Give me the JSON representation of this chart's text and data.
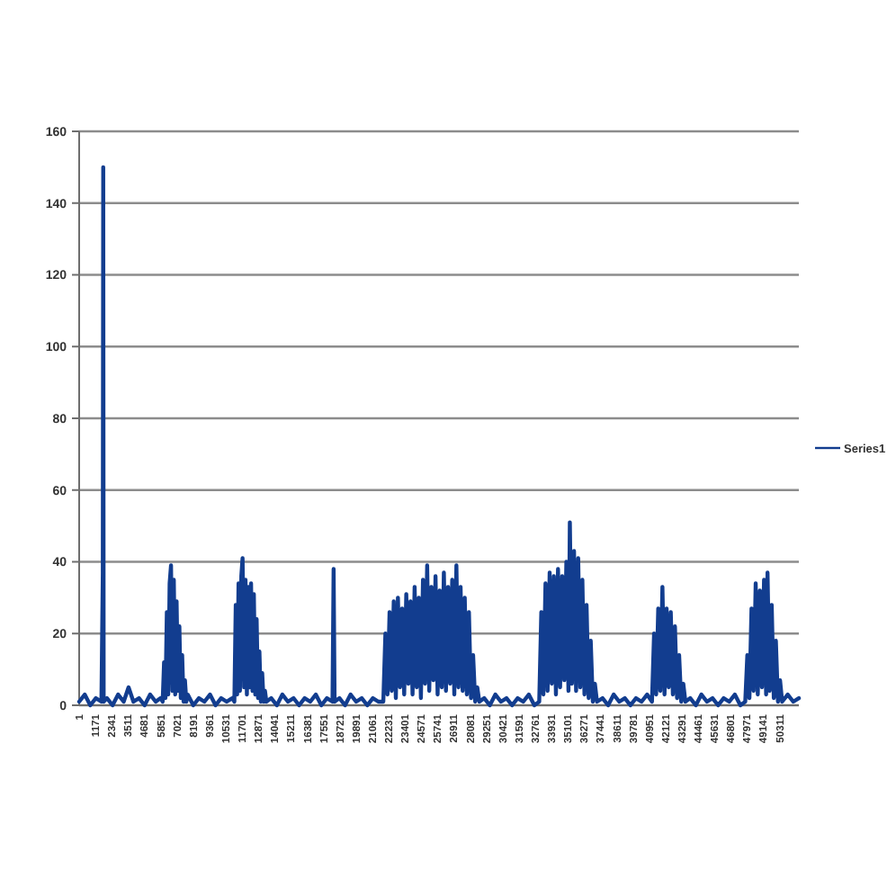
{
  "chart_data": {
    "type": "line",
    "x": [
      1,
      400,
      800,
      1200,
      1600,
      1700,
      1730,
      1760,
      2000,
      2400,
      2800,
      3200,
      3550,
      3900,
      4300,
      4700,
      5100,
      5500,
      5850,
      6000,
      6100,
      6200,
      6300,
      6400,
      6500,
      6600,
      6700,
      6800,
      6900,
      7000,
      7100,
      7200,
      7300,
      7400,
      7500,
      7600,
      7700,
      7800,
      8200,
      8600,
      9000,
      9400,
      9800,
      10200,
      10600,
      11000,
      11150,
      11250,
      11350,
      11450,
      11550,
      11650,
      11740,
      11850,
      11950,
      12050,
      12150,
      12250,
      12350,
      12450,
      12550,
      12650,
      12750,
      12850,
      12950,
      13050,
      13150,
      13250,
      13350,
      13450,
      13800,
      14200,
      14600,
      15000,
      15400,
      15800,
      16200,
      16600,
      17000,
      17400,
      17800,
      18200,
      18280,
      18350,
      18700,
      19100,
      19500,
      19900,
      20300,
      20700,
      21100,
      21500,
      21850,
      22000,
      22150,
      22300,
      22450,
      22600,
      22750,
      22900,
      23050,
      23200,
      23350,
      23500,
      23650,
      23800,
      23950,
      24100,
      24250,
      24400,
      24550,
      24700,
      24850,
      25000,
      25150,
      25300,
      25450,
      25600,
      25750,
      25900,
      26050,
      26200,
      26350,
      26500,
      26650,
      26800,
      26950,
      27100,
      27250,
      27400,
      27550,
      27700,
      27850,
      28000,
      28150,
      28300,
      28450,
      28600,
      28750,
      29100,
      29500,
      29900,
      30300,
      30700,
      31100,
      31500,
      31900,
      32300,
      32700,
      33050,
      33200,
      33350,
      33500,
      33650,
      33800,
      33950,
      34100,
      34250,
      34400,
      34550,
      34700,
      34850,
      35000,
      35150,
      35250,
      35400,
      35550,
      35700,
      35850,
      36000,
      36150,
      36300,
      36450,
      36600,
      36750,
      36900,
      37050,
      37200,
      37600,
      38000,
      38400,
      38800,
      39200,
      39600,
      40000,
      40400,
      40800,
      41150,
      41300,
      41450,
      41600,
      41750,
      41900,
      42050,
      42200,
      42350,
      42500,
      42650,
      42800,
      42950,
      43100,
      43250,
      43400,
      43550,
      43900,
      44300,
      44700,
      45100,
      45500,
      45900,
      46300,
      46700,
      47100,
      47500,
      47850,
      48000,
      48150,
      48300,
      48450,
      48600,
      48750,
      48900,
      49050,
      49200,
      49350,
      49450,
      49600,
      49750,
      49900,
      50050,
      50200,
      50350,
      50500,
      50900,
      51300,
      51700
    ],
    "series": [
      {
        "name": "Series1",
        "color": "#123d8f",
        "values": [
          1,
          3,
          0,
          2,
          1,
          37,
          150,
          1,
          2,
          0,
          3,
          1,
          5,
          1,
          2,
          0,
          3,
          1,
          2,
          1,
          12,
          2,
          26,
          3,
          34,
          39,
          4,
          35,
          3,
          29,
          4,
          22,
          2,
          14,
          1,
          7,
          1,
          3,
          0,
          2,
          1,
          3,
          0,
          2,
          1,
          2,
          1,
          28,
          3,
          34,
          4,
          36,
          41,
          5,
          35,
          3,
          33,
          5,
          34,
          4,
          31,
          3,
          24,
          2,
          15,
          1,
          9,
          1,
          4,
          1,
          2,
          0,
          3,
          1,
          2,
          0,
          2,
          1,
          3,
          0,
          2,
          1,
          38,
          1,
          2,
          0,
          3,
          1,
          2,
          0,
          2,
          1,
          1,
          20,
          3,
          26,
          4,
          29,
          2,
          30,
          5,
          27,
          3,
          31,
          6,
          29,
          3,
          33,
          5,
          30,
          2,
          35,
          6,
          39,
          4,
          33,
          7,
          36,
          3,
          32,
          5,
          37,
          4,
          33,
          6,
          35,
          3,
          39,
          5,
          33,
          4,
          30,
          3,
          26,
          2,
          14,
          1,
          5,
          1,
          2,
          0,
          3,
          1,
          2,
          0,
          2,
          1,
          3,
          0,
          1,
          26,
          3,
          34,
          4,
          37,
          6,
          36,
          3,
          38,
          5,
          36,
          7,
          40,
          4,
          51,
          6,
          43,
          4,
          41,
          5,
          35,
          3,
          28,
          2,
          18,
          1,
          6,
          1,
          2,
          0,
          3,
          1,
          2,
          0,
          2,
          1,
          3,
          1,
          20,
          3,
          27,
          4,
          33,
          3,
          27,
          5,
          26,
          3,
          22,
          2,
          14,
          1,
          6,
          1,
          2,
          0,
          3,
          1,
          2,
          0,
          2,
          1,
          3,
          0,
          1,
          14,
          2,
          27,
          4,
          34,
          3,
          32,
          5,
          35,
          3,
          37,
          4,
          28,
          2,
          18,
          1,
          7,
          1,
          3,
          1,
          2
        ]
      }
    ],
    "xlim": [
      1,
      51700
    ],
    "xticks": [
      1,
      1171,
      2341,
      3511,
      4681,
      5851,
      7021,
      8191,
      9361,
      10531,
      11701,
      12871,
      14041,
      15211,
      16381,
      17551,
      18721,
      19891,
      21061,
      22231,
      23401,
      24571,
      25741,
      26911,
      28081,
      29251,
      30421,
      31591,
      32761,
      33931,
      35101,
      36271,
      37441,
      38611,
      39781,
      40951,
      42121,
      43291,
      44461,
      45631,
      46801,
      47971,
      49141,
      50311
    ],
    "ylim": [
      0,
      160
    ],
    "yticks": [
      0,
      20,
      40,
      60,
      80,
      100,
      120,
      140,
      160
    ],
    "grid": "y",
    "legend": "right"
  }
}
